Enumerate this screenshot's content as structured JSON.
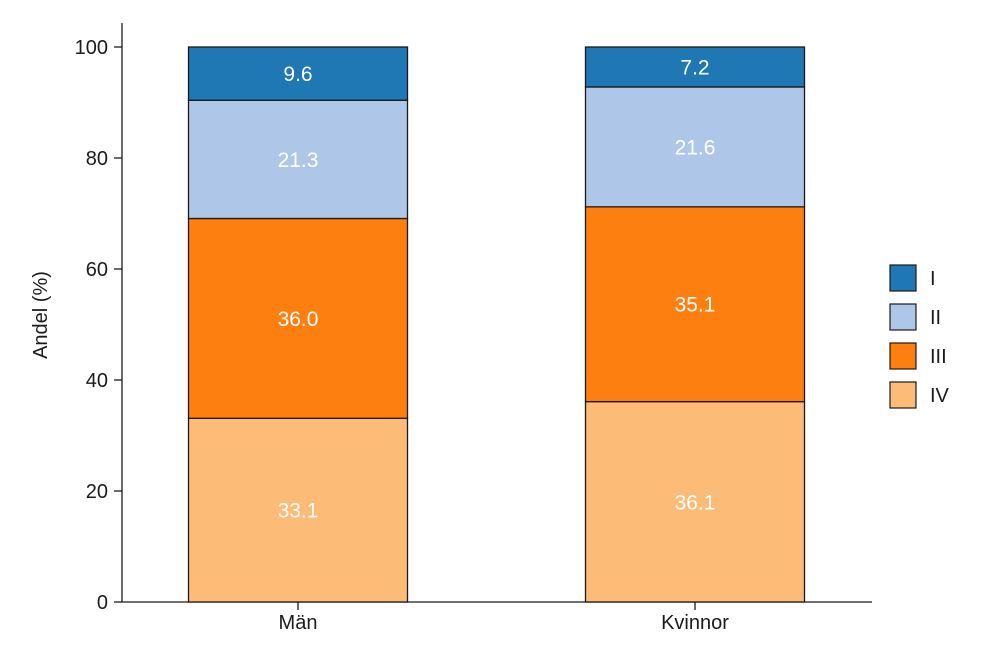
{
  "chart_data": {
    "type": "bar",
    "stacked": true,
    "categories": [
      "Män",
      "Kvinnor"
    ],
    "series": [
      {
        "name": "IV",
        "color": "#fdbb78",
        "values": [
          33.1,
          36.1
        ]
      },
      {
        "name": "III",
        "color": "#fd7f10",
        "values": [
          36.0,
          35.1
        ]
      },
      {
        "name": "II",
        "color": "#aec6e8",
        "values": [
          21.3,
          21.6
        ]
      },
      {
        "name": "I",
        "color": "#1f77b4",
        "values": [
          9.6,
          7.2
        ]
      }
    ],
    "data_labels": [
      [
        "33.1",
        "36.1"
      ],
      [
        "36.0",
        "35.1"
      ],
      [
        "21.3",
        "21.6"
      ],
      [
        "9.6",
        "7.2"
      ]
    ],
    "legend_order": [
      "I",
      "II",
      "III",
      "IV"
    ],
    "legend_position": "right",
    "title": "",
    "xlabel": "",
    "ylabel": "Andel (%)",
    "ylim": [
      0,
      100
    ],
    "yticks": [
      0,
      20,
      40,
      60,
      80,
      100
    ],
    "grid": false
  }
}
